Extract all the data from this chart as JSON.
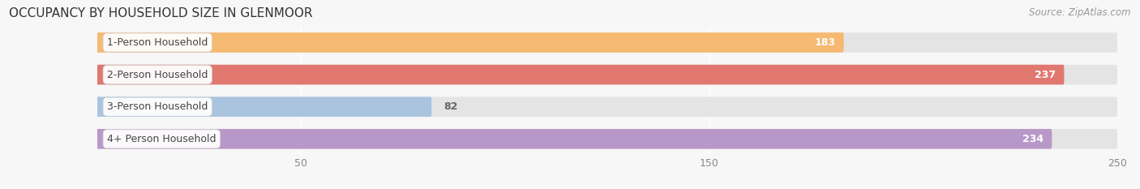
{
  "title": "OCCUPANCY BY HOUSEHOLD SIZE IN GLENMOOR",
  "source": "Source: ZipAtlas.com",
  "categories": [
    "1-Person Household",
    "2-Person Household",
    "3-Person Household",
    "4+ Person Household"
  ],
  "values": [
    183,
    237,
    82,
    234
  ],
  "bar_colors": [
    "#f5b971",
    "#e07870",
    "#aac4e0",
    "#b898c8"
  ],
  "value_inside": [
    true,
    true,
    false,
    true
  ],
  "bar_height": 0.62,
  "xmin": 0,
  "xmax": 250,
  "xticks": [
    50,
    150,
    250
  ],
  "background_color": "#f7f7f7",
  "bar_bg_color": "#e4e4e4",
  "title_fontsize": 11,
  "label_fontsize": 9,
  "value_fontsize": 9,
  "source_fontsize": 8.5,
  "value_inside_color": "#ffffff",
  "value_outside_color": "#666666",
  "label_text_color": "#444444",
  "tick_color": "#888888",
  "grid_color": "#ffffff",
  "title_color": "#333333",
  "source_color": "#999999"
}
